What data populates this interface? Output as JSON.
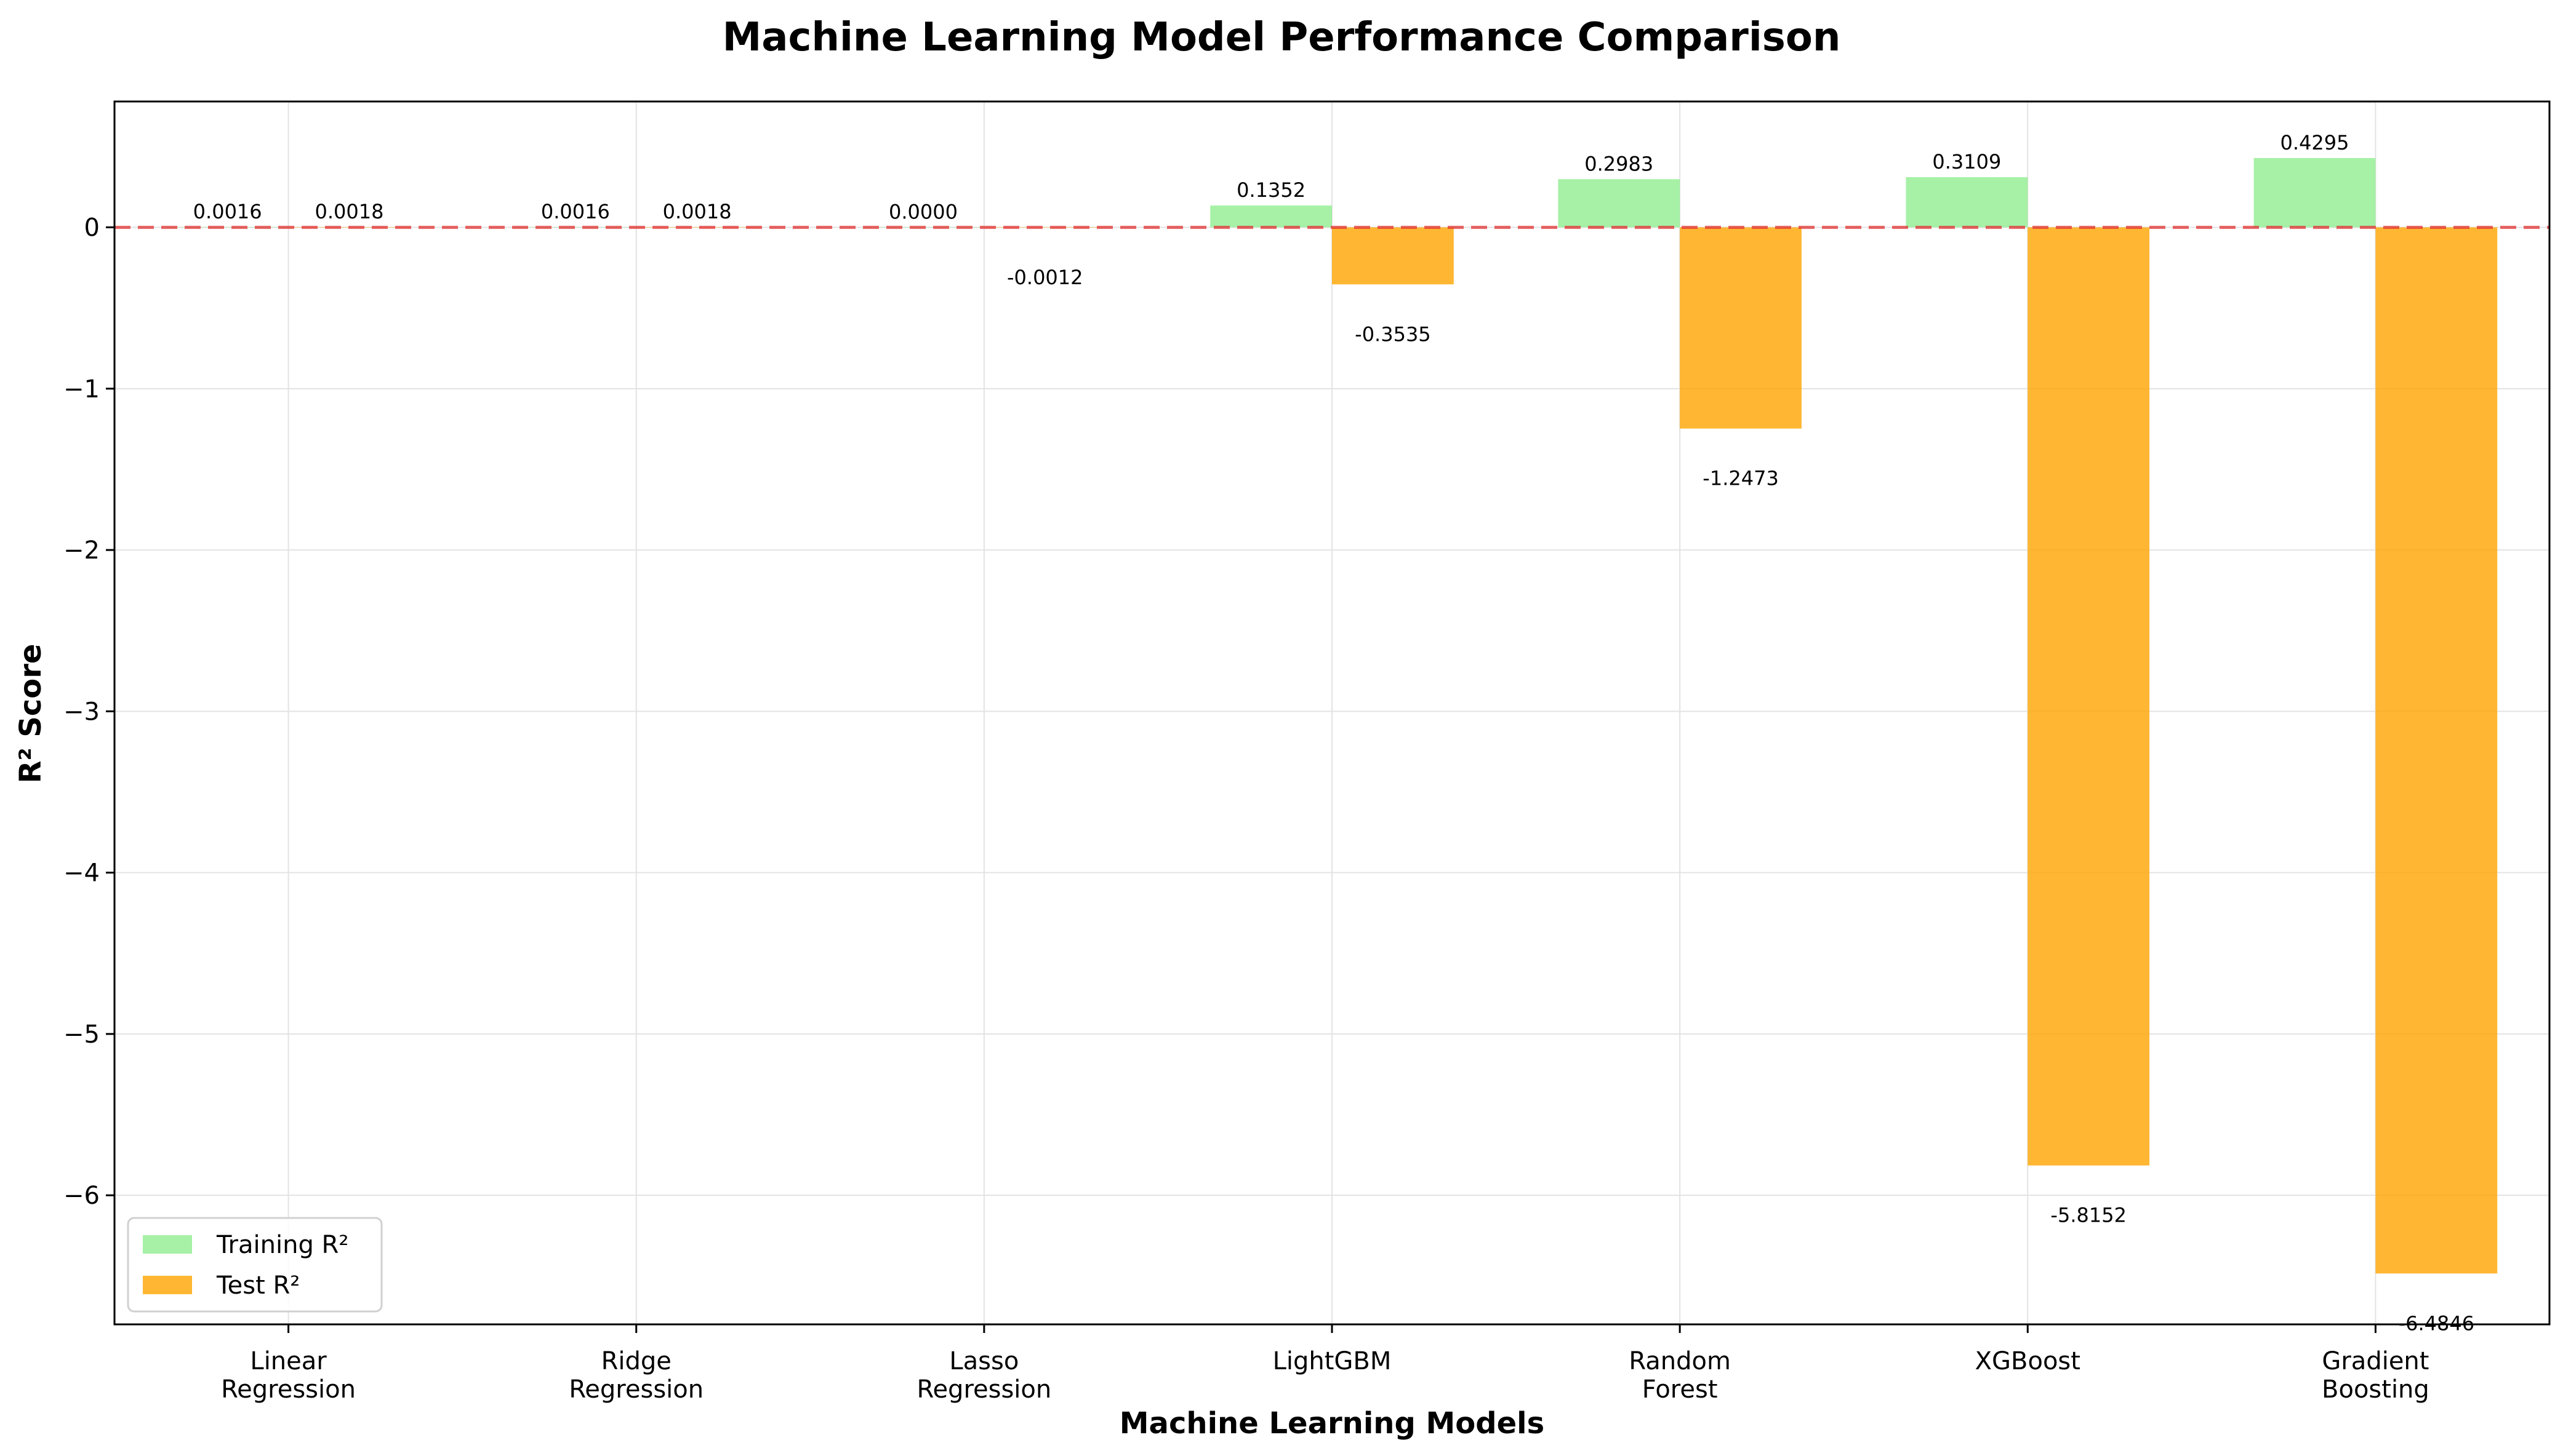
{
  "chart_data": {
    "type": "bar",
    "title": "Machine Learning Model Performance Comparison",
    "xlabel": "Machine Learning Models",
    "ylabel": "R² Score",
    "categories": [
      [
        "Linear",
        "Regression"
      ],
      [
        "Ridge",
        "Regression"
      ],
      [
        "Lasso",
        "Regression"
      ],
      [
        "LightGBM"
      ],
      [
        "Random",
        "Forest"
      ],
      [
        "XGBoost"
      ],
      [
        "Gradient",
        "Boosting"
      ]
    ],
    "series": [
      {
        "name": "Training R²",
        "color": "#90ee90",
        "values": [
          0.0016,
          0.0016,
          0.0,
          0.1352,
          0.2983,
          0.3109,
          0.4295
        ],
        "labels": [
          "0.0016",
          "0.0016",
          "0.0000",
          "0.1352",
          "0.2983",
          "0.3109",
          "0.4295"
        ]
      },
      {
        "name": "Test R²",
        "color": "#ffa500",
        "values": [
          0.0018,
          0.0018,
          -0.0012,
          -0.3535,
          -1.2473,
          -5.8152,
          -6.4846
        ],
        "labels": [
          "0.0018",
          "0.0018",
          "-0.0012",
          "-0.3535",
          "-1.2473",
          "-5.8152",
          "-6.4846"
        ]
      }
    ],
    "ylim": [
      -6.8,
      0.78
    ],
    "yticks": [
      0,
      -1,
      -2,
      -3,
      -4,
      -5,
      -6
    ],
    "ytick_labels": [
      "0",
      "−1",
      "−2",
      "−3",
      "−4",
      "−5",
      "−6"
    ],
    "reference_line": {
      "y": 0,
      "color": "#e03030",
      "style": "dashed"
    },
    "grid": true,
    "legend_position": "lower-left"
  }
}
